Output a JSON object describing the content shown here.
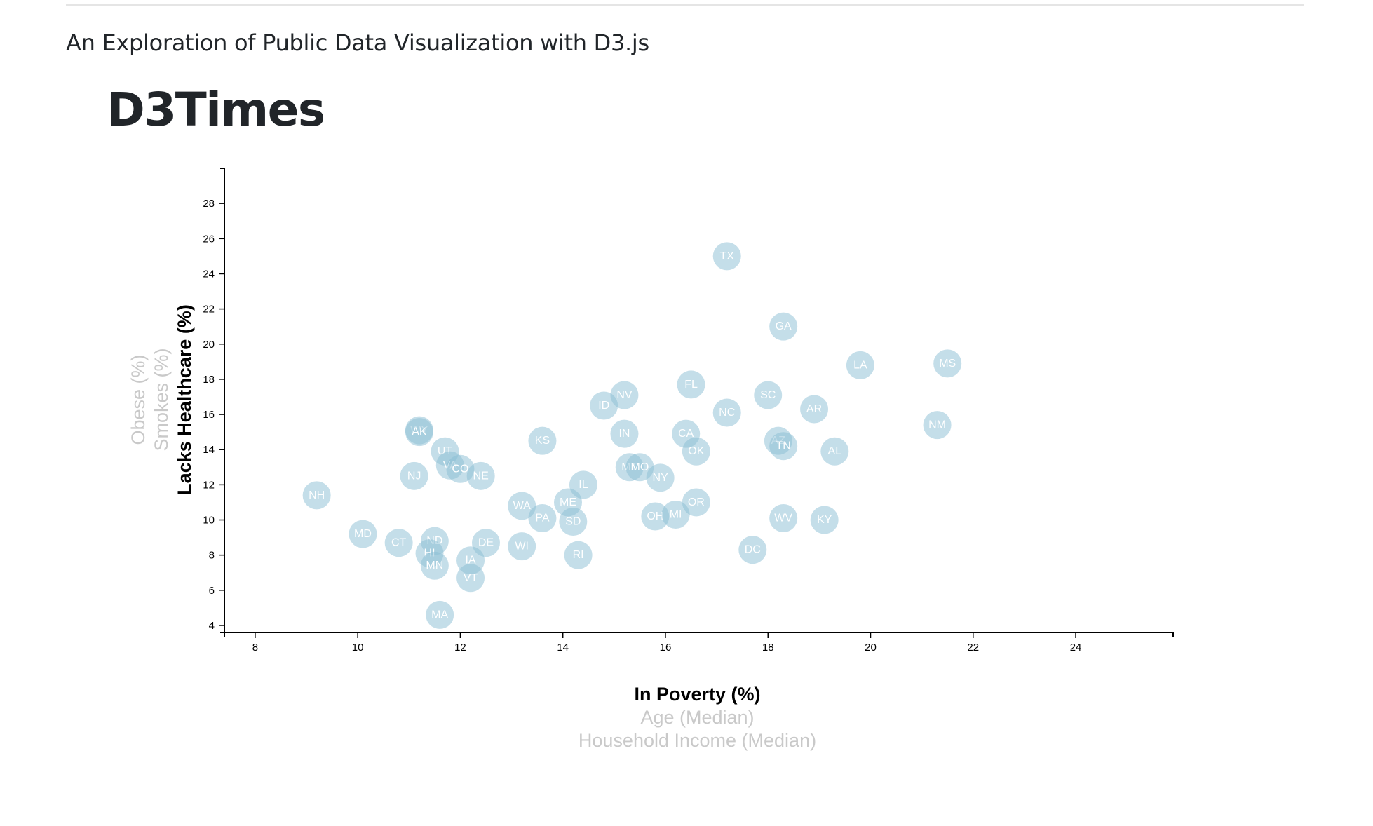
{
  "page": {
    "subtitle": "An Exploration of Public Data Visualization with D3.js",
    "brand": "D3Times"
  },
  "colors": {
    "marker": "#89bdd3",
    "active_label": "#000000",
    "inactive_label": "#c9c9c9"
  },
  "chart_data": {
    "type": "scatter",
    "title": "",
    "xlim": [
      7.4,
      25.9
    ],
    "ylim": [
      3.6,
      30
    ],
    "xticks": [
      8,
      10,
      12,
      14,
      16,
      18,
      20,
      22,
      24
    ],
    "yticks": [
      4,
      6,
      8,
      10,
      12,
      14,
      16,
      18,
      20,
      22,
      24,
      26,
      28
    ],
    "x_axis_labels": [
      {
        "text": "In Poverty (%)",
        "active": true
      },
      {
        "text": "Age (Median)",
        "active": false
      },
      {
        "text": "Household Income (Median)",
        "active": false
      }
    ],
    "y_axis_labels": [
      {
        "text": "Lacks Healthcare (%)",
        "active": true
      },
      {
        "text": "Smokes (%)",
        "active": false
      },
      {
        "text": "Obese (%)",
        "active": false
      }
    ],
    "points": [
      {
        "abbr": "TX",
        "x": 17.2,
        "y": 25.0
      },
      {
        "abbr": "GA",
        "x": 18.3,
        "y": 21.0
      },
      {
        "abbr": "LA",
        "x": 19.8,
        "y": 18.8
      },
      {
        "abbr": "MS",
        "x": 21.5,
        "y": 18.9
      },
      {
        "abbr": "FL",
        "x": 16.5,
        "y": 17.7
      },
      {
        "abbr": "NV",
        "x": 15.2,
        "y": 17.1
      },
      {
        "abbr": "ID",
        "x": 14.8,
        "y": 16.5
      },
      {
        "abbr": "SC",
        "x": 18.0,
        "y": 17.1
      },
      {
        "abbr": "NC",
        "x": 17.2,
        "y": 16.1
      },
      {
        "abbr": "AR",
        "x": 18.9,
        "y": 16.3
      },
      {
        "abbr": "NM",
        "x": 21.3,
        "y": 15.4
      },
      {
        "abbr": "WY",
        "x": 11.2,
        "y": 15.1
      },
      {
        "abbr": "AK",
        "x": 11.2,
        "y": 15.0
      },
      {
        "abbr": "KS",
        "x": 13.6,
        "y": 14.5
      },
      {
        "abbr": "IN",
        "x": 15.2,
        "y": 14.9
      },
      {
        "abbr": "CA",
        "x": 16.4,
        "y": 14.9
      },
      {
        "abbr": "OK",
        "x": 16.6,
        "y": 13.9
      },
      {
        "abbr": "AZ",
        "x": 18.2,
        "y": 14.5
      },
      {
        "abbr": "TN",
        "x": 18.3,
        "y": 14.2
      },
      {
        "abbr": "AL",
        "x": 19.3,
        "y": 13.9
      },
      {
        "abbr": "UT",
        "x": 11.7,
        "y": 13.9
      },
      {
        "abbr": "VA",
        "x": 11.8,
        "y": 13.1
      },
      {
        "abbr": "CO",
        "x": 12.0,
        "y": 12.9
      },
      {
        "abbr": "NE",
        "x": 12.4,
        "y": 12.5
      },
      {
        "abbr": "NJ",
        "x": 11.1,
        "y": 12.5
      },
      {
        "abbr": "MT",
        "x": 15.3,
        "y": 13.0
      },
      {
        "abbr": "MO",
        "x": 15.5,
        "y": 13.0
      },
      {
        "abbr": "NY",
        "x": 15.9,
        "y": 12.4
      },
      {
        "abbr": "IL",
        "x": 14.4,
        "y": 12.0
      },
      {
        "abbr": "NH",
        "x": 9.2,
        "y": 11.4
      },
      {
        "abbr": "WA",
        "x": 13.2,
        "y": 10.8
      },
      {
        "abbr": "ME",
        "x": 14.1,
        "y": 11.0
      },
      {
        "abbr": "PA",
        "x": 13.6,
        "y": 10.1
      },
      {
        "abbr": "SD",
        "x": 14.2,
        "y": 9.9
      },
      {
        "abbr": "OR",
        "x": 16.6,
        "y": 11.0
      },
      {
        "abbr": "OH",
        "x": 15.8,
        "y": 10.2
      },
      {
        "abbr": "MI",
        "x": 16.2,
        "y": 10.3
      },
      {
        "abbr": "WV",
        "x": 18.3,
        "y": 10.1
      },
      {
        "abbr": "KY",
        "x": 19.1,
        "y": 10.0
      },
      {
        "abbr": "MD",
        "x": 10.1,
        "y": 9.2
      },
      {
        "abbr": "CT",
        "x": 10.8,
        "y": 8.7
      },
      {
        "abbr": "ND",
        "x": 11.5,
        "y": 8.8
      },
      {
        "abbr": "DE",
        "x": 12.5,
        "y": 8.7
      },
      {
        "abbr": "WI",
        "x": 13.2,
        "y": 8.5
      },
      {
        "abbr": "HI",
        "x": 11.4,
        "y": 8.1
      },
      {
        "abbr": "MN",
        "x": 11.5,
        "y": 7.4
      },
      {
        "abbr": "IA",
        "x": 12.2,
        "y": 7.7
      },
      {
        "abbr": "VT",
        "x": 12.2,
        "y": 6.7
      },
      {
        "abbr": "RI",
        "x": 14.3,
        "y": 8.0
      },
      {
        "abbr": "DC",
        "x": 17.7,
        "y": 8.3
      },
      {
        "abbr": "MA",
        "x": 11.6,
        "y": 4.6
      }
    ]
  }
}
